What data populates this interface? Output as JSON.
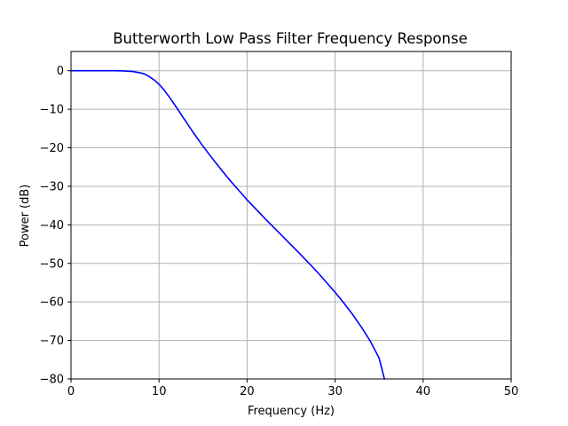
{
  "chart_data": {
    "type": "line",
    "title": "Butterworth Low Pass Filter Frequency Response",
    "xlabel": "Frequency (Hz)",
    "ylabel": "Power (dB)",
    "xlim": [
      0,
      50
    ],
    "ylim": [
      -80,
      5
    ],
    "grid": true,
    "legend": "none",
    "xticks": [
      0,
      10,
      20,
      30,
      40,
      50
    ],
    "xtick_labels": [
      "0",
      "10",
      "20",
      "30",
      "40",
      "50"
    ],
    "yticks": [
      0,
      -10,
      -20,
      -30,
      -40,
      -50,
      -60,
      -70,
      -80
    ],
    "ytick_labels": [
      "0",
      "−10",
      "−20",
      "−30",
      "−40",
      "−50",
      "−60",
      "−70",
      "−80"
    ],
    "series": [
      {
        "color": "#0000ff",
        "x": [
          0,
          1,
          2,
          3,
          4,
          5,
          6,
          7,
          8,
          8.5,
          9,
          9.5,
          10,
          10.5,
          11,
          11.5,
          12,
          13,
          14,
          15,
          16,
          17,
          18,
          19,
          20,
          22,
          24,
          26,
          28,
          30,
          31,
          32,
          33,
          34,
          35,
          35.6
        ],
        "y": [
          0,
          0,
          0,
          0,
          0,
          0,
          -0.05,
          -0.2,
          -0.6,
          -1.0,
          -1.7,
          -2.5,
          -3.5,
          -4.8,
          -6.3,
          -7.9,
          -9.6,
          -13.0,
          -16.4,
          -19.6,
          -22.6,
          -25.5,
          -28.3,
          -30.9,
          -33.5,
          -38.3,
          -42.9,
          -47.5,
          -52.3,
          -57.5,
          -60.3,
          -63.3,
          -66.6,
          -70.2,
          -74.6,
          -80.0
        ]
      }
    ]
  }
}
